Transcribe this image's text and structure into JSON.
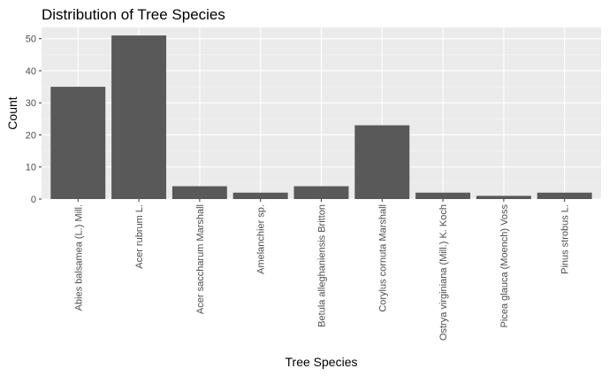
{
  "chart_data": {
    "type": "bar",
    "title": "Distribution of Tree Species",
    "xlabel": "Tree Species",
    "ylabel": "Count",
    "categories": [
      "Abies balsamea (L.) Mill.",
      "Acer rubrum L.",
      "Acer saccharum Marshall",
      "Amelanchier sp.",
      "Betula alleghaniensis Britton",
      "Corylus cornuta Marshall",
      "Ostrya virginiana (Mill.) K. Koch",
      "Picea glauca (Moench) Voss",
      "Pinus strobus L."
    ],
    "values": [
      35,
      51,
      4,
      2,
      4,
      23,
      2,
      1,
      2
    ],
    "ylim": [
      0,
      53.5
    ],
    "yticks": [
      0,
      10,
      20,
      30,
      40,
      50
    ],
    "grid": true,
    "legend": "none",
    "colors": {
      "bar": "#595959",
      "panel": "#ebebeb",
      "grid_major": "#ffffff",
      "grid_minor": "#f5f5f5",
      "tick_text": "#4d4d4d"
    }
  }
}
